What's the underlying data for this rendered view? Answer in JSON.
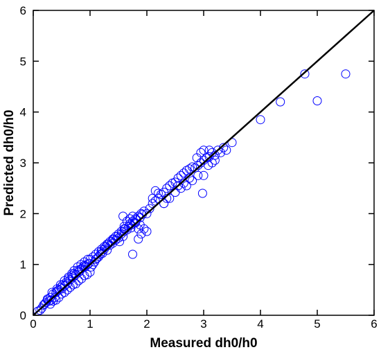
{
  "chart_data": {
    "type": "scatter",
    "title": "",
    "xlabel": "Measured dh0/h0",
    "ylabel": "Predicted dh0/h0",
    "xlim": [
      0,
      6
    ],
    "ylim": [
      0,
      6
    ],
    "xticks": [
      "0",
      "1",
      "2",
      "3",
      "4",
      "5",
      "6"
    ],
    "yticks": [
      "0",
      "1",
      "2",
      "3",
      "4",
      "5",
      "6"
    ],
    "grid": false,
    "marker_color": "#0000ff",
    "reference_line": {
      "x": [
        0,
        6
      ],
      "y": [
        0,
        6
      ],
      "color": "#000000"
    },
    "x": [
      0.08,
      0.12,
      0.15,
      0.18,
      0.2,
      0.22,
      0.25,
      0.28,
      0.3,
      0.32,
      0.35,
      0.38,
      0.4,
      0.42,
      0.45,
      0.48,
      0.5,
      0.52,
      0.55,
      0.58,
      0.6,
      0.62,
      0.65,
      0.68,
      0.7,
      0.72,
      0.75,
      0.78,
      0.8,
      0.82,
      0.85,
      0.88,
      0.9,
      0.92,
      0.95,
      0.98,
      0.3,
      0.35,
      0.4,
      0.45,
      0.5,
      0.55,
      0.6,
      0.65,
      0.7,
      0.75,
      0.8,
      0.85,
      0.9,
      0.95,
      1.0,
      0.25,
      0.33,
      0.42,
      0.48,
      0.55,
      0.62,
      0.68,
      0.72,
      0.78,
      0.84,
      0.9,
      0.96,
      1.02,
      1.05,
      1.08,
      1.1,
      1.12,
      1.15,
      1.18,
      1.2,
      1.22,
      1.25,
      1.28,
      1.3,
      1.32,
      1.35,
      1.38,
      1.4,
      1.42,
      1.45,
      1.48,
      1.5,
      1.0,
      1.05,
      1.1,
      1.15,
      1.2,
      1.25,
      1.3,
      1.35,
      1.4,
      1.45,
      1.5,
      1.55,
      1.6,
      1.52,
      1.55,
      1.58,
      1.6,
      1.62,
      1.65,
      1.68,
      1.7,
      1.72,
      1.75,
      1.78,
      1.8,
      1.82,
      1.85,
      1.88,
      1.9,
      1.92,
      1.95,
      1.6,
      1.65,
      1.7,
      1.75,
      1.8,
      1.85,
      1.9,
      1.95,
      2.0,
      1.58,
      1.72,
      1.88,
      2.0,
      2.05,
      2.1,
      2.15,
      2.2,
      2.25,
      2.3,
      2.35,
      2.4,
      2.45,
      2.5,
      2.55,
      2.6,
      2.65,
      2.7,
      2.75,
      2.8,
      2.1,
      2.2,
      2.3,
      2.4,
      2.5,
      2.6,
      2.7,
      2.8,
      2.9,
      2.15,
      2.35,
      2.55,
      2.65,
      2.75,
      2.85,
      2.9,
      2.95,
      3.0,
      3.05,
      3.1,
      3.15,
      3.2,
      3.25,
      3.3,
      3.35,
      3.4,
      3.5,
      2.88,
      2.95,
      3.0,
      3.08,
      3.15,
      3.2,
      2.98,
      3.1,
      1.75,
      1.85,
      2.3,
      3.0,
      4.0,
      4.35,
      4.78,
      5.0,
      5.5
    ],
    "y": [
      0.08,
      0.1,
      0.14,
      0.2,
      0.22,
      0.25,
      0.3,
      0.28,
      0.35,
      0.3,
      0.42,
      0.35,
      0.45,
      0.48,
      0.5,
      0.55,
      0.52,
      0.6,
      0.58,
      0.65,
      0.62,
      0.72,
      0.7,
      0.78,
      0.75,
      0.82,
      0.8,
      0.88,
      0.85,
      0.9,
      0.92,
      0.95,
      0.98,
      0.96,
      1.0,
      1.02,
      0.22,
      0.28,
      0.3,
      0.35,
      0.42,
      0.45,
      0.5,
      0.55,
      0.6,
      0.62,
      0.68,
      0.72,
      0.78,
      0.8,
      0.85,
      0.32,
      0.45,
      0.52,
      0.6,
      0.68,
      0.75,
      0.82,
      0.88,
      0.95,
      1.0,
      1.05,
      1.1,
      0.95,
      1.0,
      1.05,
      1.1,
      1.12,
      1.15,
      1.2,
      1.25,
      1.22,
      1.3,
      1.35,
      1.28,
      1.4,
      1.38,
      1.45,
      1.42,
      1.5,
      1.48,
      1.55,
      1.52,
      1.1,
      1.15,
      1.2,
      1.25,
      1.3,
      1.35,
      1.4,
      1.45,
      1.5,
      1.55,
      1.6,
      1.65,
      1.7,
      1.45,
      1.6,
      1.55,
      1.65,
      1.7,
      1.68,
      1.75,
      1.8,
      1.78,
      1.85,
      1.82,
      1.9,
      1.88,
      1.95,
      1.92,
      2.0,
      1.98,
      2.05,
      1.75,
      1.85,
      1.9,
      1.95,
      1.82,
      1.7,
      1.6,
      1.7,
      1.65,
      1.95,
      1.72,
      1.78,
      2.0,
      2.1,
      2.2,
      2.25,
      2.3,
      2.38,
      2.42,
      2.5,
      2.55,
      2.6,
      2.62,
      2.7,
      2.75,
      2.8,
      2.85,
      2.88,
      2.92,
      2.3,
      2.4,
      2.2,
      2.3,
      2.42,
      2.5,
      2.55,
      2.65,
      2.75,
      2.45,
      2.3,
      2.55,
      2.6,
      2.7,
      2.9,
      2.95,
      3.0,
      3.05,
      3.1,
      3.12,
      3.2,
      3.15,
      3.25,
      3.2,
      3.3,
      3.25,
      3.4,
      3.1,
      3.2,
      3.25,
      2.95,
      3.0,
      3.05,
      2.4,
      3.25,
      1.2,
      1.5,
      2.2,
      2.75,
      3.85,
      4.2,
      4.75,
      4.22,
      4.75
    ]
  }
}
